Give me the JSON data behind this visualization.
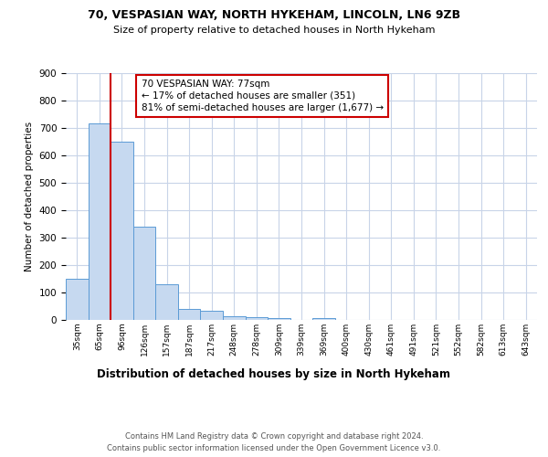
{
  "title1": "70, VESPASIAN WAY, NORTH HYKEHAM, LINCOLN, LN6 9ZB",
  "title2": "Size of property relative to detached houses in North Hykeham",
  "xlabel": "Distribution of detached houses by size in North Hykeham",
  "ylabel": "Number of detached properties",
  "categories": [
    "35sqm",
    "65sqm",
    "96sqm",
    "126sqm",
    "157sqm",
    "187sqm",
    "217sqm",
    "248sqm",
    "278sqm",
    "309sqm",
    "339sqm",
    "369sqm",
    "400sqm",
    "430sqm",
    "461sqm",
    "491sqm",
    "521sqm",
    "552sqm",
    "582sqm",
    "613sqm",
    "643sqm"
  ],
  "values": [
    150,
    715,
    650,
    340,
    130,
    40,
    35,
    12,
    10,
    8,
    0,
    8,
    0,
    0,
    0,
    0,
    0,
    0,
    0,
    0,
    0
  ],
  "bar_color": "#c6d9f0",
  "bar_edge_color": "#5b9bd5",
  "vline_x": 1.5,
  "vline_color": "#cc0000",
  "annotation_text": "70 VESPASIAN WAY: 77sqm\n← 17% of detached houses are smaller (351)\n81% of semi-detached houses are larger (1,677) →",
  "annotation_box_color": "#ffffff",
  "annotation_box_edge": "#cc0000",
  "footer": "Contains HM Land Registry data © Crown copyright and database right 2024.\nContains public sector information licensed under the Open Government Licence v3.0.",
  "ylim": [
    0,
    900
  ],
  "background_color": "#ffffff",
  "grid_color": "#c8d4e8"
}
